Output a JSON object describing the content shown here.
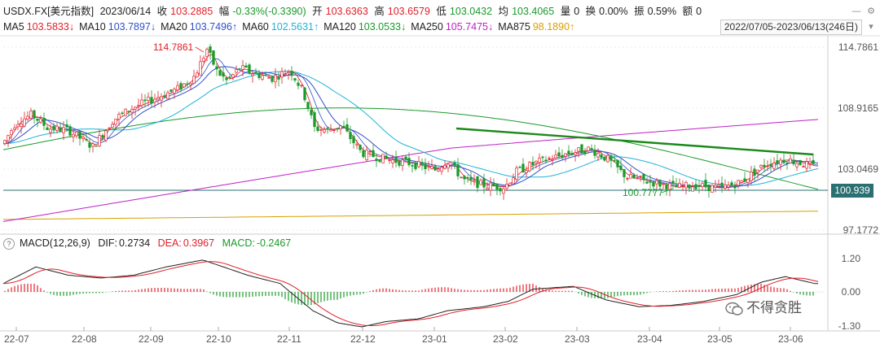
{
  "quote_bar": {
    "symbol": "USDX.FX[美元指数]",
    "date": "2023/06/14",
    "close_label": "收",
    "close": "103.2885",
    "change_label": "幅",
    "change": "-0.33%(-0.3390)",
    "open_label": "开",
    "open": "103.6363",
    "high_label": "高",
    "high": "103.6579",
    "low_label": "低",
    "low": "103.0432",
    "avg_label": "均",
    "avg": "103.4065",
    "volume_label": "量",
    "volume": "0",
    "turnover_label": "换",
    "turnover": "0.00%",
    "amplitude_label": "振",
    "amplitude": "0.59%",
    "amount_label": "额",
    "amount": "0"
  },
  "ma_bar": {
    "items": [
      {
        "label": "MA5",
        "value": "103.5833↓",
        "color": "#e0202a"
      },
      {
        "label": "MA10",
        "value": "103.7897↓",
        "color": "#3050c8"
      },
      {
        "label": "MA20",
        "value": "103.7496↑",
        "color": "#3050c8"
      },
      {
        "label": "MA60",
        "value": "102.5631↑",
        "color": "#1fb3d6"
      },
      {
        "label": "MA120",
        "value": "103.0533↓",
        "color": "#1a9a2a"
      },
      {
        "label": "MA250",
        "value": "105.7475↓",
        "color": "#c020c8"
      },
      {
        "label": "MA875",
        "value": "98.1890↑",
        "color": "#d8a000"
      }
    ],
    "date_range": "2022/07/05-2023/06/13(246日)"
  },
  "price_axis": {
    "ticks": [
      "114.7861",
      "108.9165",
      "103.0469",
      "97.1772"
    ],
    "last_price": "100.939"
  },
  "annotations": {
    "high_marker": "114.7861",
    "low_marker": "100.7777"
  },
  "macd": {
    "title": "MACD(12,26,9)",
    "dif_label": "DIF:",
    "dif": "0.2734",
    "dea_label": "DEA:",
    "dea": "0.3967",
    "macd_label": "MACD:",
    "macd": "-0.2467",
    "axis_ticks": [
      "1.20",
      "0.00",
      "-1.30"
    ]
  },
  "time_axis": [
    "22-07",
    "22-08",
    "22-09",
    "22-10",
    "22-11",
    "22-12",
    "23-01",
    "23-02",
    "23-03",
    "23-04",
    "23-05",
    "23-06"
  ],
  "watermark": "不得贪胜",
  "colors": {
    "up": "#e0202a",
    "down": "#1a9a2a",
    "trendline": "#1a8a1a",
    "last_tag": "#2a6f72"
  }
}
